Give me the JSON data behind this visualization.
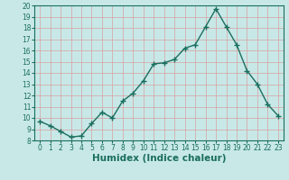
{
  "x": [
    0,
    1,
    2,
    3,
    4,
    5,
    6,
    7,
    8,
    9,
    10,
    11,
    12,
    13,
    14,
    15,
    16,
    17,
    18,
    19,
    20,
    21,
    22,
    23
  ],
  "y": [
    9.7,
    9.3,
    8.8,
    8.3,
    8.4,
    9.5,
    10.5,
    10.0,
    11.5,
    12.2,
    13.3,
    14.8,
    14.9,
    15.2,
    16.2,
    16.5,
    18.1,
    19.7,
    18.1,
    16.5,
    14.2,
    13.0,
    11.2,
    10.2
  ],
  "line_color": "#1a6e5e",
  "marker": "+",
  "marker_size": 4,
  "bg_color": "#c8e8e8",
  "grid_color": "#d8a0a0",
  "xlabel": "Humidex (Indice chaleur)",
  "xlim": [
    -0.5,
    23.5
  ],
  "ylim": [
    8,
    20
  ],
  "yticks": [
    8,
    9,
    10,
    11,
    12,
    13,
    14,
    15,
    16,
    17,
    18,
    19,
    20
  ],
  "xticks": [
    0,
    1,
    2,
    3,
    4,
    5,
    6,
    7,
    8,
    9,
    10,
    11,
    12,
    13,
    14,
    15,
    16,
    17,
    18,
    19,
    20,
    21,
    22,
    23
  ],
  "tick_label_fontsize": 5.5,
  "xlabel_fontsize": 7.5,
  "line_width": 1.0,
  "marker_color": "#1a6e5e",
  "tick_color": "#1a6e5e",
  "label_color": "#1a6e5e"
}
